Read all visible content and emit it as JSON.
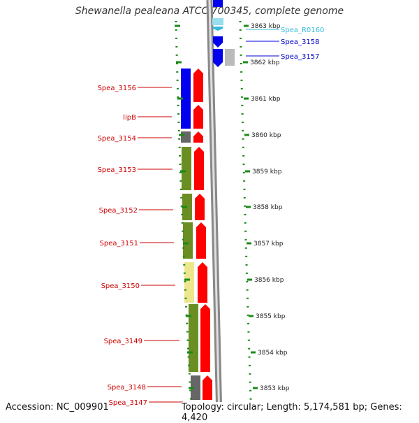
{
  "title": "Shewanella pealeana ATCC 700345, complete genome",
  "accession": "Accession: NC_009901",
  "topology": "Topology: circular; Length: 5,174,581 bp; Genes: 4,420",
  "colors": {
    "left_labels": "#cc0000",
    "right_labels": "#0000cc",
    "rna_label": "#33bbdd",
    "strand_forward": "#ff0000",
    "strand_reverse": "#0000ee",
    "scale_ticks": "#1a8a1a"
  },
  "scale_labels": [
    "3863 kbp",
    "3862 kbp",
    "3861 kbp",
    "3860 kbp",
    "3859 kbp",
    "3858 kbp",
    "3857 kbp",
    "3856 kbp",
    "3855 kbp",
    "3854 kbp",
    "3853 kbp"
  ],
  "left_genes": [
    {
      "id": "g3156",
      "label": "Spea_3156",
      "category_color": "#0000ee",
      "strand_color": "#ff0000"
    },
    {
      "id": "glipB",
      "label": "lipB",
      "category_color": "#0000ee",
      "strand_color": "#ff0000"
    },
    {
      "id": "g3154",
      "label": "Spea_3154",
      "category_color": "#666666",
      "strand_color": "#ff0000"
    },
    {
      "id": "g3153",
      "label": "Spea_3153",
      "category_color": "#6b8e23",
      "strand_color": "#ff0000"
    },
    {
      "id": "g3152",
      "label": "Spea_3152",
      "category_color": "#6b8e23",
      "strand_color": "#ff0000"
    },
    {
      "id": "g3151",
      "label": "Spea_3151",
      "category_color": "#6b8e23",
      "strand_color": "#ff0000"
    },
    {
      "id": "g3150",
      "label": "Spea_3150",
      "category_color": "#eee68c",
      "strand_color": "#ff0000"
    },
    {
      "id": "g3149",
      "label": "Spea_3149",
      "category_color": "#6b8e23",
      "strand_color": "#ff0000"
    },
    {
      "id": "g3148",
      "label": "Spea_3148",
      "category_color": "#666666",
      "strand_color": "#ff0000"
    },
    {
      "id": "g3147",
      "label": "Spea_3147",
      "category_color": "#0000ee",
      "strand_color": "#ff0000"
    }
  ],
  "right_genes": [
    {
      "id": "gR0160",
      "label": "Spea_R0160",
      "category_color": "#33bbdd",
      "strand_color": "#33bbdd"
    },
    {
      "id": "g3158",
      "label": "Spea_3158",
      "category_color": "#0000ee",
      "strand_color": "#0000ee"
    },
    {
      "id": "g3157",
      "label": "Spea_3157",
      "category_color": "#bbbbbb",
      "strand_color": "#0000ee"
    }
  ]
}
